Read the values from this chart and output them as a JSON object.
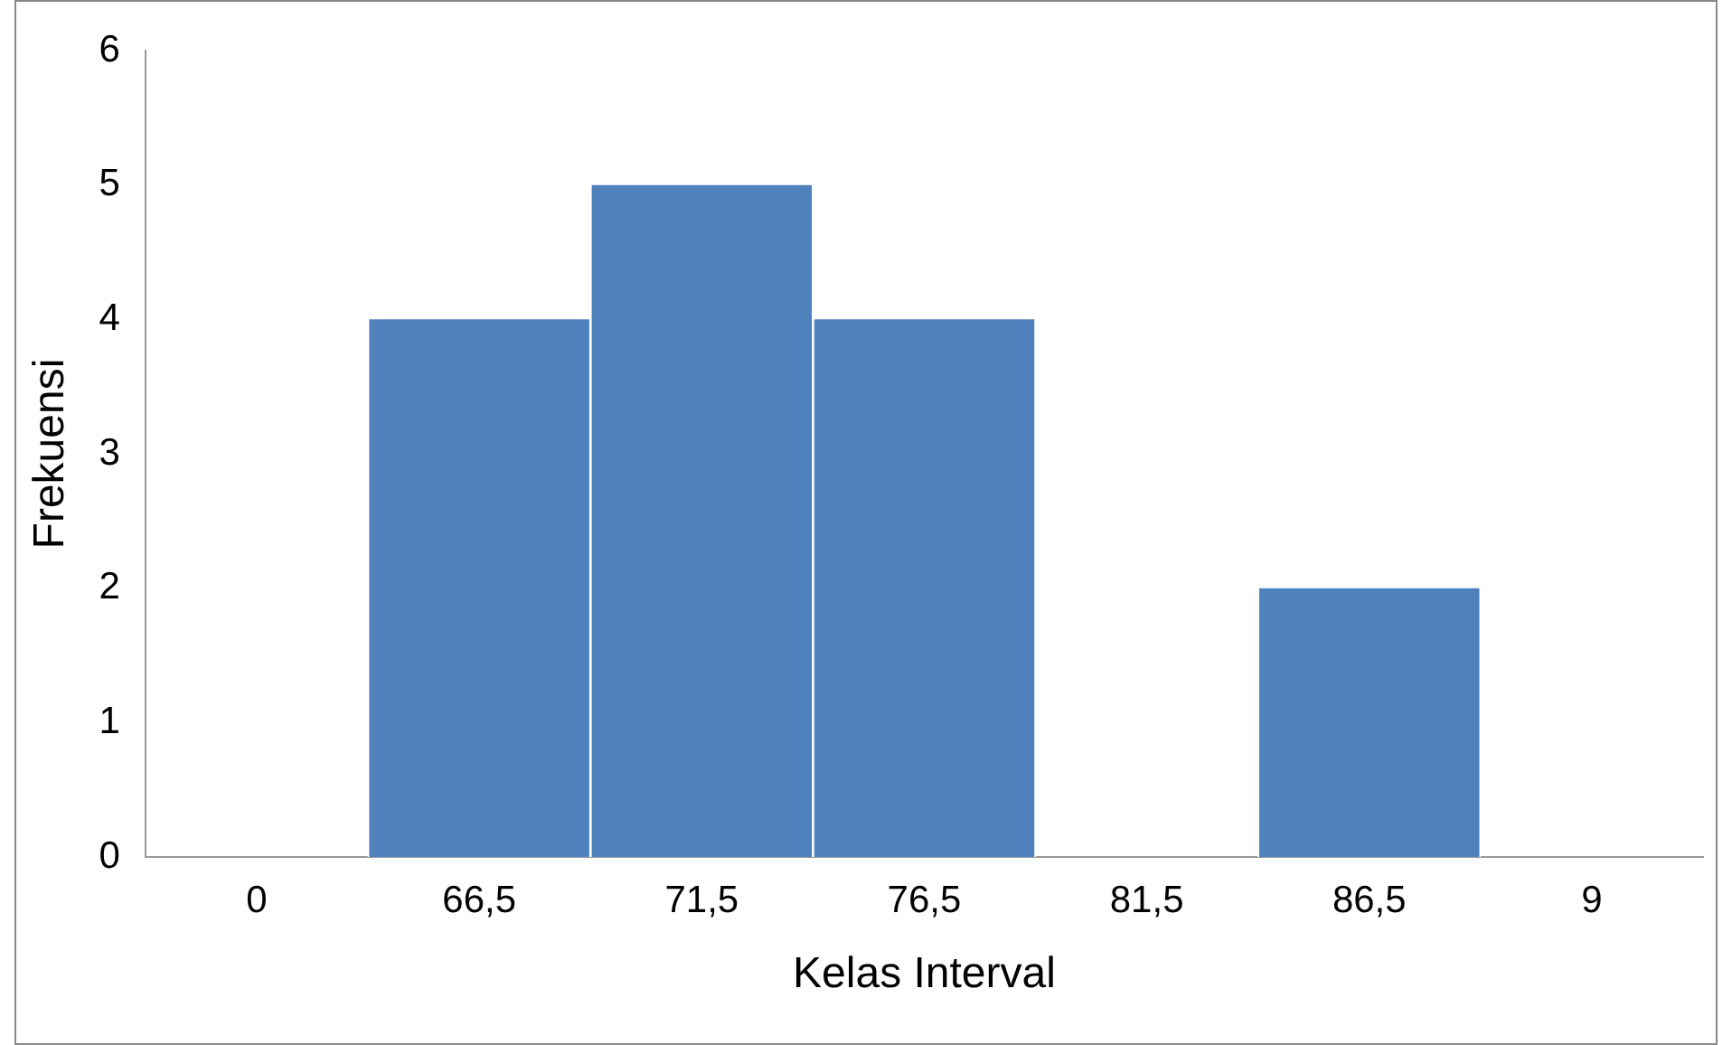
{
  "chart_data": {
    "type": "bar",
    "xlabel": "Kelas Interval",
    "ylabel": "Frekuensi",
    "categories": [
      "0",
      "66,5",
      "71,5",
      "76,5",
      "81,5",
      "86,5",
      "9"
    ],
    "values": [
      0,
      4,
      5,
      4,
      0,
      2,
      0
    ],
    "color": "#4f81bd",
    "ylim": [
      0,
      6
    ],
    "yticks": [
      0,
      1,
      2,
      3,
      4,
      5,
      6
    ],
    "grid": false,
    "legend": false
  }
}
